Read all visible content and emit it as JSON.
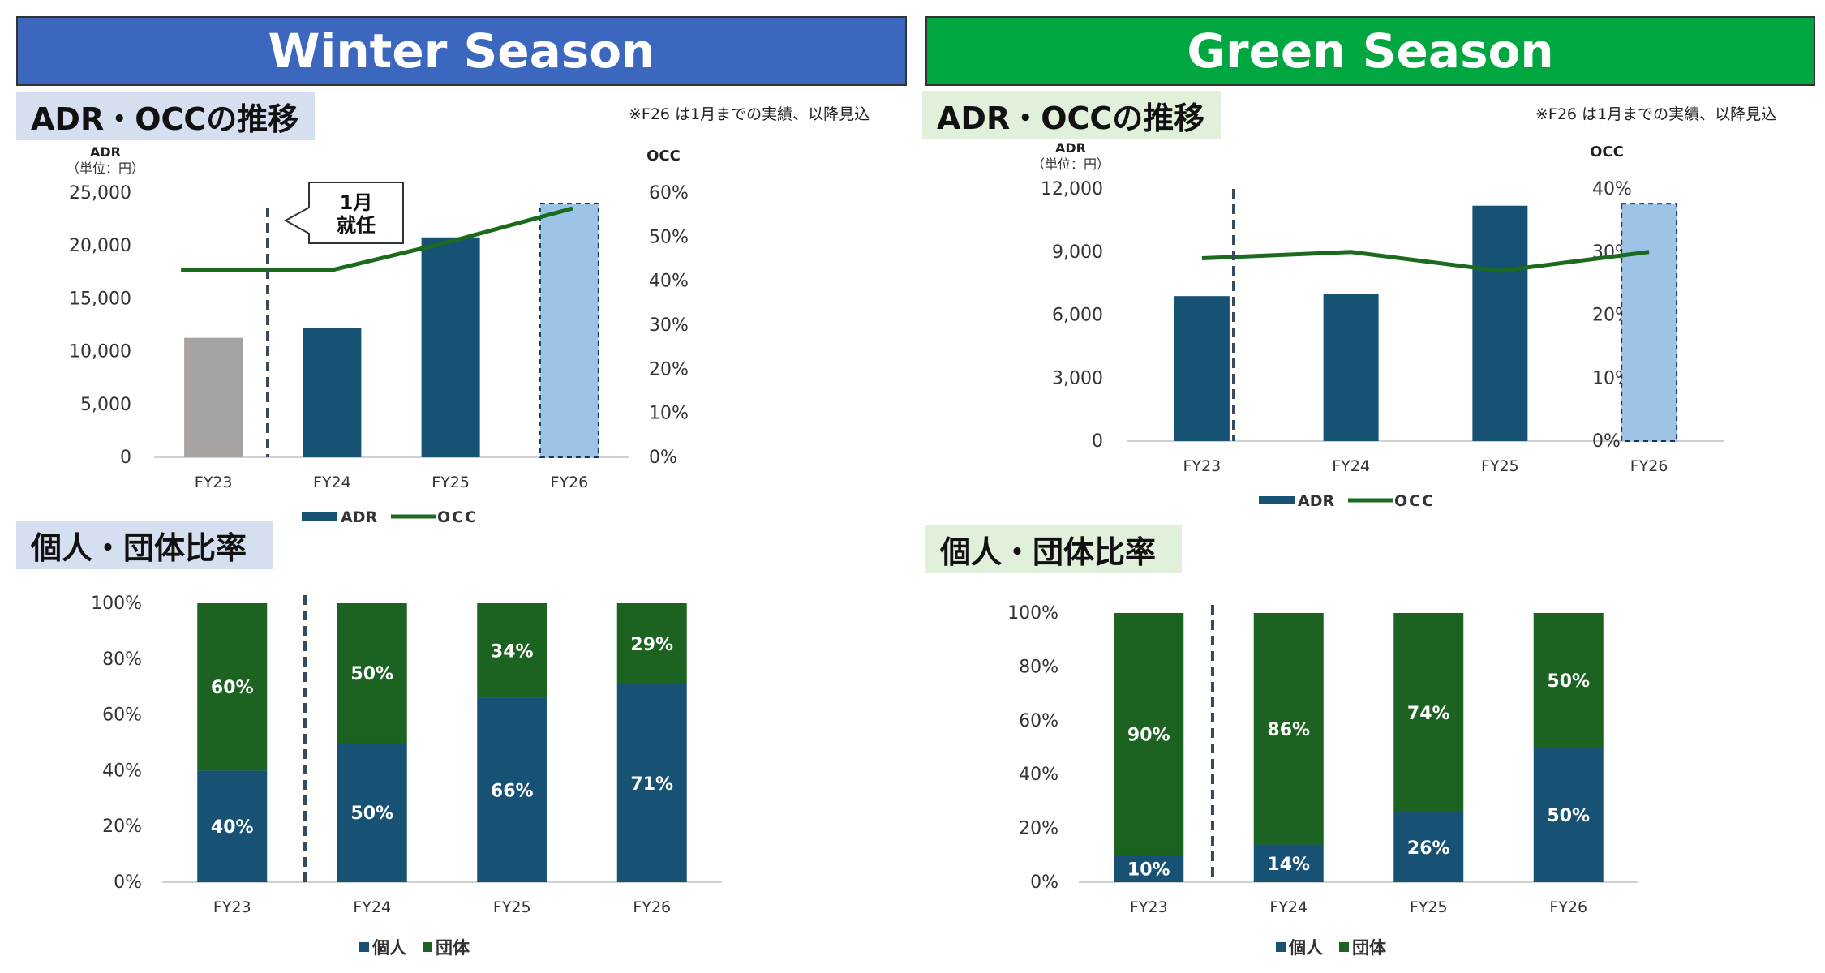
{
  "colors": {
    "navy": "#175274",
    "gray": "#a6a3a1",
    "light_blue": "#9dc3e6",
    "dark_green": "#1c6321",
    "occ_line": "#1b6b1f",
    "winter_banner": "#3b67be",
    "green_banner": "#00a63f",
    "winter_label_bg": "#d6dff0",
    "green_label_bg": "#e0f0da",
    "marker_line": "#3a4a5e"
  },
  "winter": {
    "banner": "Winter Season",
    "adr_title": "ADR・OCCの推移",
    "note": "※F26 は1月までの実績、以降見込",
    "ratio_title": "個人・団体比率",
    "callout_line1": "1月",
    "callout_line2": "就任"
  },
  "green": {
    "banner": "Green Season",
    "adr_title": "ADR・OCCの推移",
    "note": "※F26 は1月までの実績、以降見込",
    "ratio_title": "個人・団体比率"
  },
  "chart_data": [
    {
      "id": "winter_adr_occ",
      "type": "bar",
      "categories": [
        "FY23",
        "FY24",
        "FY25",
        "FY26"
      ],
      "series": [
        {
          "name": "ADR",
          "axis": "left",
          "values": [
            11300,
            12200,
            20800,
            24000
          ],
          "bar_colors": [
            "gray",
            "navy",
            "navy",
            "light_blue"
          ],
          "dashed_border": [
            false,
            false,
            false,
            true
          ]
        },
        {
          "name": "OCC",
          "axis": "right",
          "type": "line",
          "values": [
            0.425,
            0.425,
            0.49,
            0.565
          ]
        }
      ],
      "ylabel_left": "ADR",
      "ylabel_left_unit": "（単位：円）",
      "ylabel_right": "OCC",
      "ylim_left": [
        0,
        25000
      ],
      "ylim_right": [
        0,
        0.6
      ],
      "yticks_left": [
        "0",
        "5,000",
        "10,000",
        "15,000",
        "20,000",
        "25,000"
      ],
      "yticks_right": [
        "0%",
        "10%",
        "20%",
        "30%",
        "40%",
        "50%",
        "60%"
      ],
      "legend": [
        "ADR",
        "OCC"
      ],
      "legend_position": "bottom"
    },
    {
      "id": "winter_ratio",
      "type": "bar",
      "stacked": true,
      "categories": [
        "FY23",
        "FY24",
        "FY25",
        "FY26"
      ],
      "series": [
        {
          "name": "個人",
          "values": [
            40,
            50,
            66,
            71
          ],
          "labels": [
            "40%",
            "50%",
            "66%",
            "71%"
          ]
        },
        {
          "name": "団体",
          "values": [
            60,
            50,
            34,
            29
          ],
          "labels": [
            "60%",
            "50%",
            "34%",
            "29%"
          ]
        }
      ],
      "ylim": [
        0,
        100
      ],
      "yticks": [
        "0%",
        "20%",
        "40%",
        "60%",
        "80%",
        "100%"
      ],
      "legend": [
        "個人",
        "団体"
      ],
      "legend_position": "bottom"
    },
    {
      "id": "green_adr_occ",
      "type": "bar",
      "categories": [
        "FY23",
        "FY24",
        "FY25",
        "FY26"
      ],
      "series": [
        {
          "name": "ADR",
          "axis": "left",
          "values": [
            6900,
            7000,
            11200,
            11300
          ],
          "bar_colors": [
            "navy",
            "navy",
            "navy",
            "light_blue"
          ],
          "dashed_border": [
            false,
            false,
            false,
            true
          ]
        },
        {
          "name": "OCC",
          "axis": "right",
          "type": "line",
          "values": [
            0.29,
            0.3,
            0.27,
            0.3
          ]
        }
      ],
      "ylabel_left": "ADR",
      "ylabel_left_unit": "（単位：円）",
      "ylabel_right": "OCC",
      "ylim_left": [
        0,
        12000
      ],
      "ylim_right": [
        0,
        0.4
      ],
      "yticks_left": [
        "0",
        "3,000",
        "6,000",
        "9,000",
        "12,000"
      ],
      "yticks_right": [
        "0%",
        "10%",
        "20%",
        "30%",
        "40%"
      ],
      "legend": [
        "ADR",
        "OCC"
      ],
      "legend_position": "bottom"
    },
    {
      "id": "green_ratio",
      "type": "bar",
      "stacked": true,
      "categories": [
        "FY23",
        "FY24",
        "FY25",
        "FY26"
      ],
      "series": [
        {
          "name": "個人",
          "values": [
            10,
            14,
            26,
            50
          ],
          "labels": [
            "10%",
            "14%",
            "26%",
            "50%"
          ]
        },
        {
          "name": "団体",
          "values": [
            90,
            86,
            74,
            50
          ],
          "labels": [
            "90%",
            "86%",
            "74%",
            "50%"
          ]
        }
      ],
      "ylim": [
        0,
        100
      ],
      "yticks": [
        "0%",
        "20%",
        "40%",
        "60%",
        "80%",
        "100%"
      ],
      "legend": [
        "個人",
        "団体"
      ],
      "legend_position": "bottom"
    }
  ]
}
